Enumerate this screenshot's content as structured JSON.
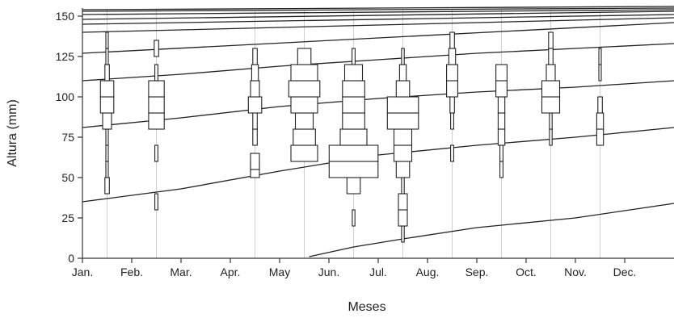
{
  "chart_data": {
    "type": "line",
    "title": "",
    "xlabel": "Meses",
    "ylabel": "Altura (mm)",
    "x_tick_labels": [
      "Jan.",
      "Feb.",
      "Mar.",
      "Apr.",
      "May",
      "Jun.",
      "Jul.",
      "Aug.",
      "Sep.",
      "Oct.",
      "Nov.",
      "Dec."
    ],
    "x_range_months": [
      0,
      12
    ],
    "ylim": [
      0,
      155
    ],
    "y_ticks": [
      0,
      25,
      50,
      75,
      100,
      125,
      150
    ],
    "grid": "vertical lines at sampling dates",
    "sample_dates_month": [
      0.5,
      1.5,
      3.5,
      4.5,
      5.5,
      6.5,
      7.5,
      8.5,
      9.5,
      10.5
    ],
    "series": [
      {
        "x": [
          0,
          12
        ],
        "y": [
          154,
          156
        ]
      },
      {
        "x": [
          0,
          12
        ],
        "y": [
          153,
          155
        ]
      },
      {
        "x": [
          0,
          12
        ],
        "y": [
          151,
          154
        ]
      },
      {
        "x": [
          0,
          12
        ],
        "y": [
          148,
          153
        ]
      },
      {
        "x": [
          0,
          12
        ],
        "y": [
          145,
          151
        ]
      },
      {
        "x": [
          0,
          12
        ],
        "y": [
          140,
          149
        ]
      },
      {
        "x": [
          0,
          12
        ],
        "y": [
          127,
          146
        ]
      },
      {
        "x": [
          0,
          2,
          4,
          6,
          8,
          10,
          12
        ],
        "y": [
          110,
          114,
          119,
          123,
          127,
          130,
          133
        ]
      },
      {
        "x": [
          0,
          2,
          4,
          6,
          8,
          10,
          12
        ],
        "y": [
          81,
          87,
          94,
          99,
          103,
          106,
          110
        ]
      },
      {
        "x": [
          0,
          2,
          4,
          5,
          6,
          8,
          10,
          12
        ],
        "y": [
          35,
          43,
          54,
          59,
          64,
          70,
          75,
          81
        ]
      },
      {
        "x": [
          4.6,
          5.5,
          6.5,
          8,
          10,
          12
        ],
        "y": [
          1,
          7,
          12,
          19,
          25,
          34
        ]
      }
    ],
    "histograms": [
      {
        "month": 0.5,
        "bins": [
          [
            40,
            1
          ],
          [
            50,
            0.3
          ],
          [
            60,
            0.3
          ],
          [
            70,
            0.3
          ],
          [
            80,
            2
          ],
          [
            90,
            3
          ],
          [
            100,
            3
          ],
          [
            110,
            1
          ],
          [
            120,
            0.3
          ],
          [
            130,
            0.3
          ]
        ]
      },
      {
        "month": 1.5,
        "bins": [
          [
            30,
            0.7
          ],
          [
            60,
            0.7
          ],
          [
            80,
            3.5
          ],
          [
            90,
            3.5
          ],
          [
            100,
            3.5
          ],
          [
            110,
            0.7
          ],
          [
            125,
            1
          ]
        ]
      },
      {
        "month": 3.5,
        "bins": [
          [
            50,
            2
          ],
          [
            55,
            2
          ],
          [
            70,
            1
          ],
          [
            80,
            1
          ],
          [
            90,
            3
          ],
          [
            100,
            2
          ],
          [
            110,
            1.5
          ],
          [
            120,
            1
          ]
        ]
      },
      {
        "month": 4.5,
        "bins": [
          [
            60,
            6
          ],
          [
            70,
            5
          ],
          [
            80,
            4
          ],
          [
            90,
            6
          ],
          [
            100,
            7
          ],
          [
            110,
            6
          ],
          [
            120,
            3
          ]
        ]
      },
      {
        "month": 5.5,
        "bins": [
          [
            20,
            0.6
          ],
          [
            40,
            3
          ],
          [
            50,
            11
          ],
          [
            60,
            11
          ],
          [
            70,
            6
          ],
          [
            80,
            5
          ],
          [
            90,
            5
          ],
          [
            100,
            5
          ],
          [
            110,
            4
          ],
          [
            120,
            0.7
          ]
        ]
      },
      {
        "month": 6.5,
        "bins": [
          [
            10,
            0.6
          ],
          [
            20,
            2
          ],
          [
            30,
            2
          ],
          [
            40,
            0.6
          ],
          [
            50,
            3
          ],
          [
            60,
            4
          ],
          [
            70,
            4
          ],
          [
            80,
            7
          ],
          [
            90,
            7
          ],
          [
            100,
            3
          ],
          [
            110,
            1.5
          ],
          [
            120,
            0.6
          ]
        ]
      },
      {
        "month": 7.5,
        "bins": [
          [
            60,
            0.7
          ],
          [
            80,
            0.7
          ],
          [
            90,
            1
          ],
          [
            100,
            2.5
          ],
          [
            110,
            2.5
          ],
          [
            120,
            1.5
          ],
          [
            130,
            1
          ]
        ]
      },
      {
        "month": 8.5,
        "bins": [
          [
            50,
            0.7
          ],
          [
            60,
            0.7
          ],
          [
            70,
            1.5
          ],
          [
            80,
            1.5
          ],
          [
            90,
            1.5
          ],
          [
            100,
            2.5
          ],
          [
            110,
            2.5
          ]
        ]
      },
      {
        "month": 9.5,
        "bins": [
          [
            70,
            0.6
          ],
          [
            80,
            0.6
          ],
          [
            90,
            4
          ],
          [
            100,
            4
          ],
          [
            110,
            2
          ],
          [
            120,
            1
          ],
          [
            130,
            1
          ]
        ]
      },
      {
        "month": 10.5,
        "bins": [
          [
            70,
            1.5
          ],
          [
            80,
            1.5
          ],
          [
            90,
            1
          ],
          [
            110,
            0.4
          ],
          [
            120,
            0.4
          ]
        ]
      }
    ]
  }
}
